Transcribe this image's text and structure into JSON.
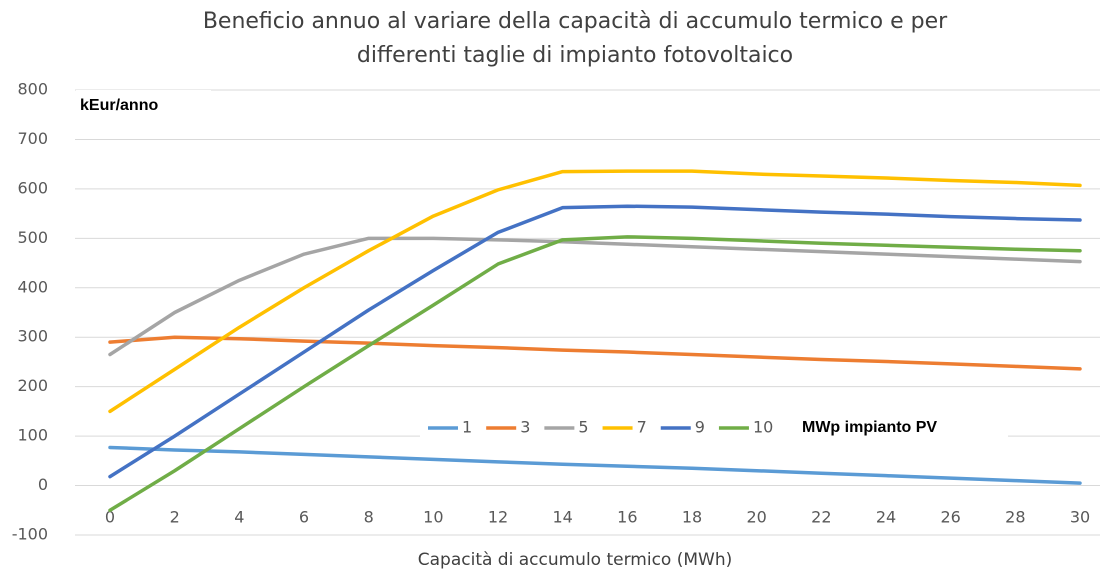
{
  "chart_data": {
    "type": "line",
    "title": [
      "Beneficio annuo al variare della capacità di accumulo termico e per",
      "differenti taglie di impianto fotovoltaico"
    ],
    "x_label": "Capacità di accumulo termico (MWh)",
    "annotations": [
      "kEur/anno",
      "MWp impianto PV"
    ],
    "x": [
      0,
      2,
      4,
      6,
      8,
      10,
      12,
      14,
      16,
      18,
      20,
      22,
      24,
      26,
      28,
      30
    ],
    "xlim": [
      0,
      30
    ],
    "xticks": [
      0,
      2,
      4,
      6,
      8,
      10,
      12,
      14,
      16,
      18,
      20,
      22,
      24,
      26,
      28,
      30
    ],
    "ylim": [
      -100,
      800
    ],
    "yticks": [
      -100,
      0,
      100,
      200,
      300,
      400,
      500,
      600,
      700,
      800
    ],
    "grid": true,
    "series": [
      {
        "name": "1",
        "color": "#5b9bd5",
        "values": [
          77,
          72,
          68,
          63,
          58,
          53,
          48,
          43,
          39,
          35,
          30,
          25,
          20,
          15,
          10,
          5
        ]
      },
      {
        "name": "3",
        "color": "#ed7d31",
        "values": [
          290,
          300,
          297,
          292,
          288,
          283,
          279,
          274,
          270,
          265,
          260,
          255,
          251,
          246,
          241,
          236
        ]
      },
      {
        "name": "5",
        "color": "#a5a5a5",
        "values": [
          265,
          350,
          415,
          468,
          500,
          500,
          497,
          493,
          488,
          483,
          478,
          473,
          468,
          463,
          458,
          453
        ]
      },
      {
        "name": "7",
        "color": "#ffc000",
        "values": [
          150,
          235,
          320,
          400,
          475,
          545,
          598,
          635,
          636,
          636,
          630,
          626,
          622,
          617,
          613,
          607
        ]
      },
      {
        "name": "9",
        "color": "#4472c4",
        "values": [
          18,
          100,
          185,
          270,
          355,
          435,
          512,
          562,
          565,
          563,
          558,
          553,
          549,
          544,
          540,
          537
        ]
      },
      {
        "name": "10",
        "color": "#70ad47",
        "values": [
          -50,
          30,
          115,
          200,
          283,
          365,
          448,
          497,
          503,
          500,
          495,
          490,
          486,
          482,
          478,
          475
        ]
      }
    ]
  }
}
